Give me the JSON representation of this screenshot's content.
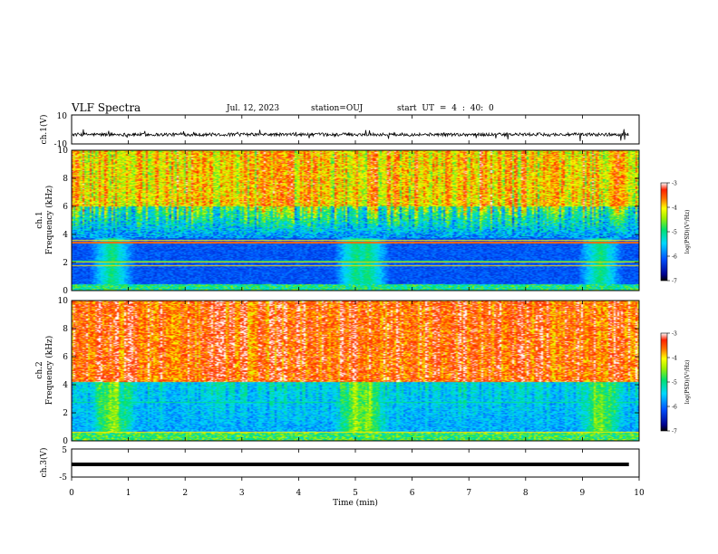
{
  "header": {
    "title": "VLF Spectra",
    "date": "Jul. 12, 2023",
    "station": "station=OUJ",
    "start": "start UT = 4 : 40: 0"
  },
  "chart_data": [
    {
      "type": "line",
      "name": "ch1-waveform",
      "ylabel": "ch.1(V)",
      "ylim": [
        -10,
        10
      ],
      "yticks": [
        "10",
        "-10"
      ],
      "xlim": [
        0,
        10
      ],
      "baseline": -3.5
    },
    {
      "type": "heatmap",
      "name": "ch1-spectrogram",
      "ylabel": "ch.1\nFrequency (kHz)",
      "ylim": [
        0,
        10
      ],
      "yticks": [
        "0",
        "2",
        "4",
        "6",
        "8",
        "10"
      ],
      "xlim": [
        0,
        10
      ]
    },
    {
      "type": "heatmap",
      "name": "ch2-spectrogram",
      "ylabel": "ch.2\nFrequency (kHz)",
      "ylim": [
        0,
        10
      ],
      "yticks": [
        "0",
        "2",
        "4",
        "6",
        "8",
        "10"
      ],
      "xlim": [
        0,
        10
      ]
    },
    {
      "type": "line",
      "name": "ch3-waveform",
      "ylabel": "ch.3(V)",
      "ylim": [
        -5,
        5
      ],
      "yticks": [
        "5",
        "-5"
      ],
      "xlim": [
        0,
        10
      ],
      "baseline": -0.5,
      "xlabel": "Time (min)",
      "xticks": [
        "0",
        "1",
        "2",
        "3",
        "4",
        "5",
        "6",
        "7",
        "8",
        "9",
        "10"
      ]
    }
  ],
  "colorbar": {
    "label": "log(PSD)(V²/Hz)",
    "ticks": [
      "-3",
      "-4",
      "-5",
      "-6",
      "-7"
    ],
    "range": [
      -7,
      -3
    ]
  }
}
